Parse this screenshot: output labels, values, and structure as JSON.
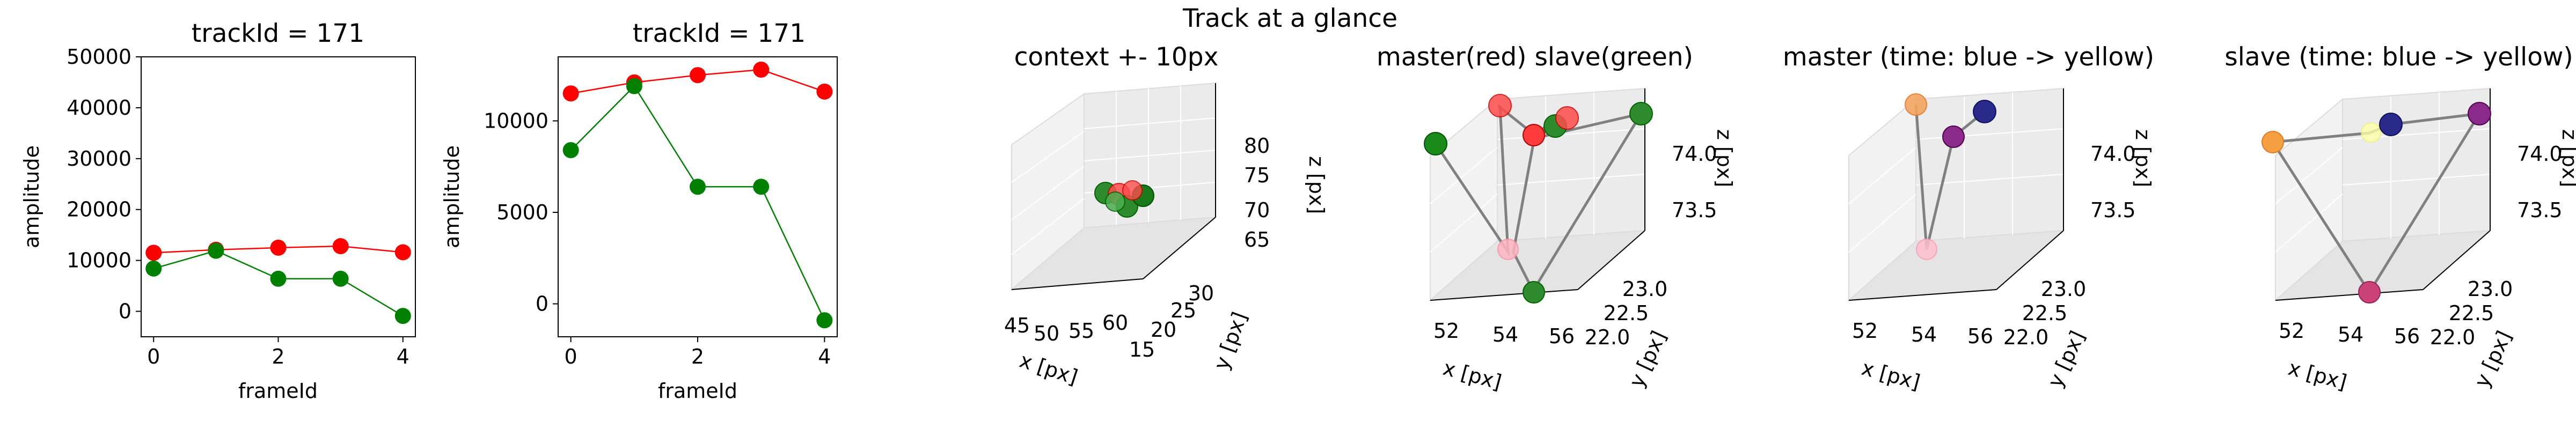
{
  "figure": {
    "suptitle": "Track at a glance"
  },
  "colors": {
    "master": "#ff0000",
    "slave": "#008000",
    "frame": "#000000",
    "track3d": "#808080"
  },
  "chart_data": [
    {
      "type": "line",
      "title": "trackId = 171",
      "xlabel": "frameId",
      "ylabel": "amplitude",
      "xlim": [
        -0.2,
        4.2
      ],
      "ylim": [
        -5000,
        50000
      ],
      "x": [
        0,
        1,
        2,
        3,
        4
      ],
      "xticks": [
        "0",
        "2",
        "4"
      ],
      "yticks": [
        "0",
        "10000",
        "20000",
        "30000",
        "40000",
        "50000"
      ],
      "series": [
        {
          "values": [
            11500,
            12100,
            12500,
            12800,
            11600
          ],
          "color": "#ff0000"
        },
        {
          "values": [
            8400,
            11900,
            6400,
            6400,
            -900
          ],
          "color": "#008000"
        }
      ]
    },
    {
      "type": "line",
      "title": "trackId = 171",
      "xlabel": "frameId",
      "ylabel": "amplitude",
      "xlim": [
        -0.2,
        4.2
      ],
      "ylim": [
        -1800,
        13500
      ],
      "x": [
        0,
        1,
        2,
        3,
        4
      ],
      "xticks": [
        "0",
        "2",
        "4"
      ],
      "yticks": [
        "0",
        "5000",
        "10000"
      ],
      "series": [
        {
          "values": [
            11500,
            12100,
            12500,
            12800,
            11600
          ],
          "color": "#ff0000"
        },
        {
          "values": [
            8400,
            11900,
            6400,
            6400,
            -900
          ],
          "color": "#008000"
        }
      ]
    },
    {
      "type": "scatter",
      "projection": "3d",
      "title": "context +- 10px",
      "xlabel": "x [px]",
      "ylabel": "y [px]",
      "zlabel": "z [px]",
      "xticks": [
        "45",
        "50",
        "55",
        "60"
      ],
      "yticks": [
        "15",
        "20",
        "25",
        "30"
      ],
      "zticks": [
        "65",
        "70",
        "75",
        "80"
      ],
      "markers": [
        "green",
        "red",
        "green",
        "green",
        "red",
        "green"
      ]
    },
    {
      "type": "scatter",
      "projection": "3d",
      "title": "master(red) slave(green)",
      "xlabel": "x [px]",
      "ylabel": "y [px]",
      "zlabel": "z [px]",
      "xticks": [
        "52",
        "54",
        "56"
      ],
      "yticks": [
        "22.0",
        "22.5",
        "23.0"
      ],
      "zticks": [
        "73.5",
        "74.0"
      ],
      "markers": [
        "red",
        "red",
        "red",
        "green",
        "green",
        "green",
        "pink",
        "green"
      ]
    },
    {
      "type": "scatter",
      "projection": "3d",
      "title": "master (time: blue -> yellow)",
      "xlabel": "x [px]",
      "ylabel": "y [px]",
      "zlabel": "z [px]",
      "xticks": [
        "52",
        "54",
        "56"
      ],
      "yticks": [
        "22.0",
        "22.5",
        "23.0"
      ],
      "zticks": [
        "73.5",
        "74.0"
      ],
      "markers": [
        "orange",
        "navy",
        "purple",
        "pink"
      ]
    },
    {
      "type": "scatter",
      "projection": "3d",
      "title": "slave (time: blue -> yellow)",
      "xlabel": "x [px]",
      "ylabel": "y [px]",
      "zlabel": "z [px]",
      "xticks": [
        "52",
        "54",
        "56"
      ],
      "yticks": [
        "22.0",
        "22.5",
        "23.0"
      ],
      "zticks": [
        "73.5",
        "74.0"
      ],
      "markers": [
        "orange",
        "yellow",
        "navy",
        "purple",
        "crimson"
      ]
    }
  ]
}
